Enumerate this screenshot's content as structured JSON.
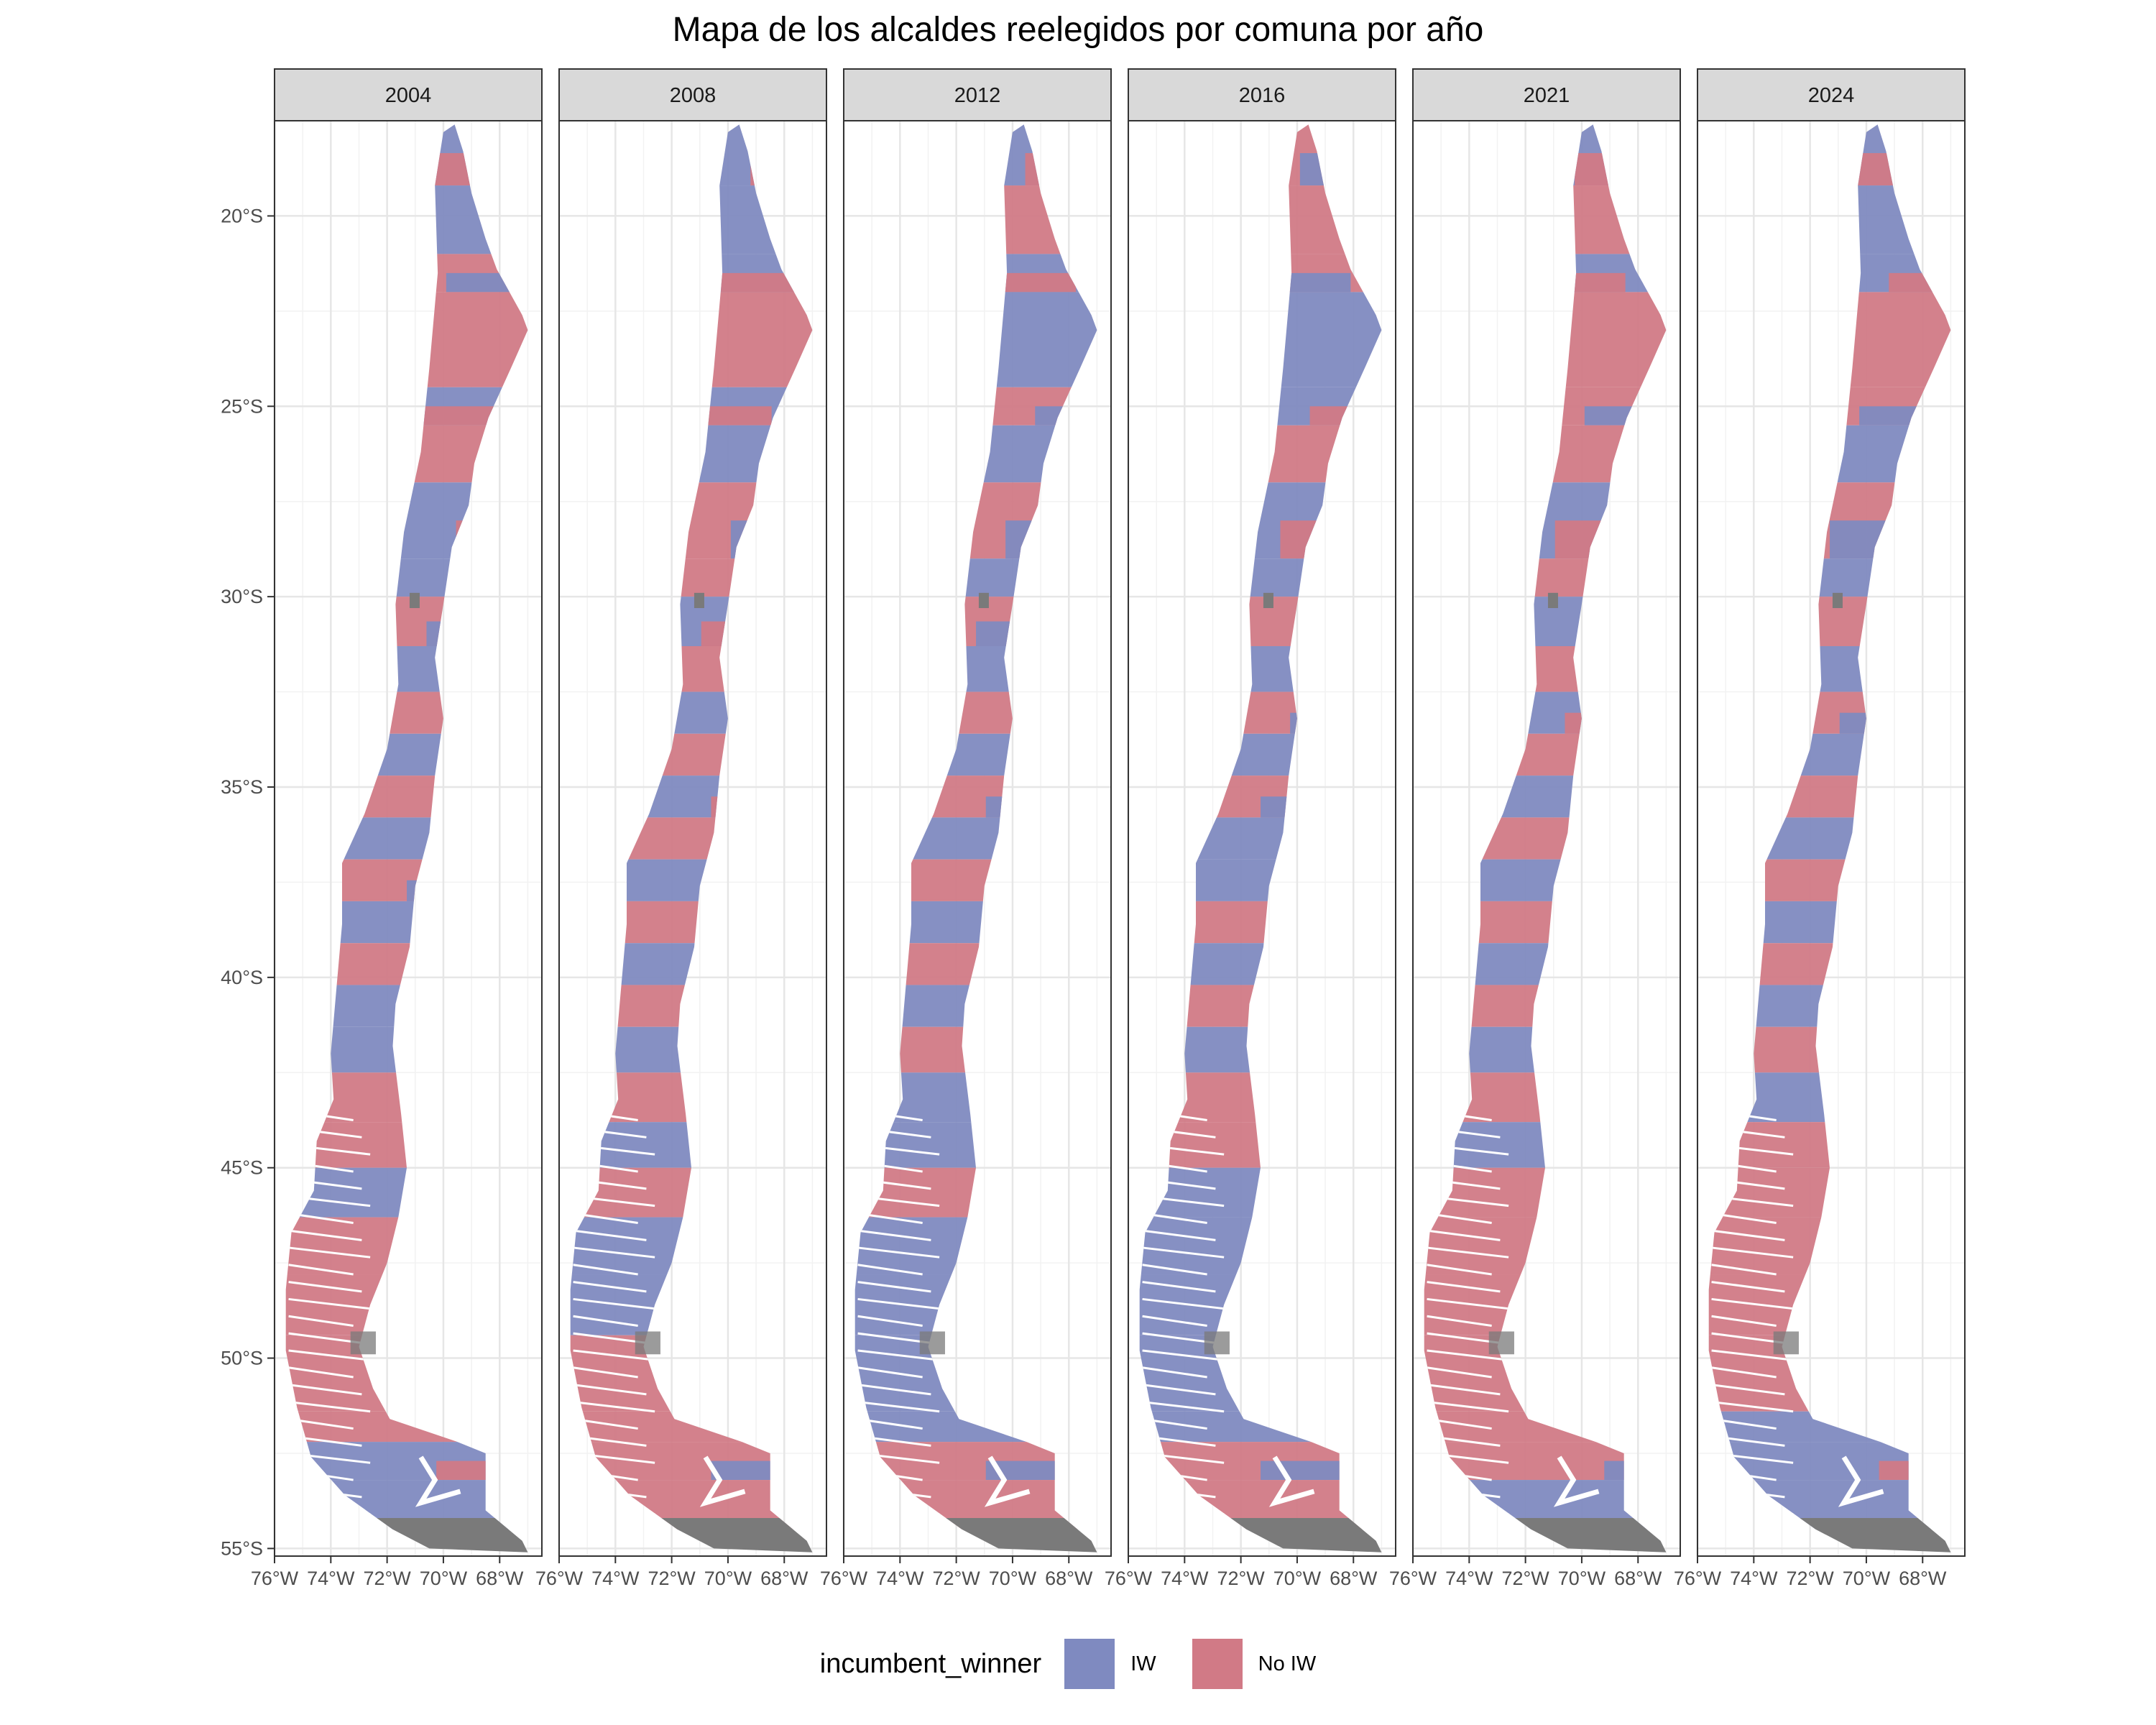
{
  "title": "Mapa de los alcaldes reelegidos por comuna por año",
  "chart_data": {
    "type": "choropleth-map",
    "facets": [
      "2004",
      "2008",
      "2012",
      "2016",
      "2021",
      "2024"
    ],
    "x_axis": {
      "range": [
        -76,
        -66.5
      ],
      "ticks": [
        -76,
        -74,
        -72,
        -70,
        -68
      ],
      "tick_labels": [
        "76°W",
        "74°W",
        "72°W",
        "70°W",
        "68°W"
      ]
    },
    "y_axis": {
      "range": [
        -55.2,
        -17.5
      ],
      "ticks": [
        -20,
        -25,
        -30,
        -35,
        -40,
        -45,
        -50,
        -55
      ],
      "tick_labels": [
        "20°S",
        "25°S",
        "30°S",
        "35°S",
        "40°S",
        "45°S",
        "50°S",
        "55°S"
      ]
    },
    "grid": true,
    "legend": {
      "title": "incumbent_winner",
      "position": "bottom",
      "entries": [
        {
          "label": "IW",
          "color": "#7f8ac0"
        },
        {
          "label": "No IW",
          "color": "#d17a86"
        }
      ]
    },
    "na_color": "#7a7a7a",
    "colors": {
      "IW": "#7f8ac0",
      "No IW": "#d17a86"
    },
    "regions": [
      {
        "lat": [
          -17.5,
          -19.2
        ],
        "vals": [
          "IW",
          "IW",
          "IW",
          "No IW",
          "IW",
          "IW"
        ]
      },
      {
        "lat": [
          -19.2,
          -21.0
        ],
        "vals": [
          "IW",
          "IW",
          "No IW",
          "No IW",
          "No IW",
          "IW"
        ]
      },
      {
        "lat": [
          -21.0,
          -22.0
        ],
        "vals": [
          "No IW",
          "IW",
          "IW",
          "No IW",
          "IW",
          "IW"
        ]
      },
      {
        "lat": [
          -22.0,
          -24.5
        ],
        "vals": [
          "No IW",
          "No IW",
          "IW",
          "IW",
          "No IW",
          "No IW"
        ]
      },
      {
        "lat": [
          -24.5,
          -25.5
        ],
        "vals": [
          "IW",
          "IW",
          "No IW",
          "IW",
          "No IW",
          "No IW"
        ]
      },
      {
        "lat": [
          -25.5,
          -27.0
        ],
        "vals": [
          "No IW",
          "IW",
          "IW",
          "No IW",
          "No IW",
          "IW"
        ]
      },
      {
        "lat": [
          -27.0,
          -29.0
        ],
        "vals": [
          "IW",
          "No IW",
          "No IW",
          "IW",
          "IW",
          "No IW"
        ]
      },
      {
        "lat": [
          -29.0,
          -30.0
        ],
        "vals": [
          "IW",
          "No IW",
          "IW",
          "IW",
          "No IW",
          "IW"
        ]
      },
      {
        "lat": [
          -30.0,
          -31.3
        ],
        "vals": [
          "No IW",
          "IW",
          "No IW",
          "No IW",
          "IW",
          "No IW"
        ]
      },
      {
        "lat": [
          -31.3,
          -32.5
        ],
        "vals": [
          "IW",
          "No IW",
          "IW",
          "IW",
          "No IW",
          "IW"
        ]
      },
      {
        "lat": [
          -32.5,
          -33.6
        ],
        "vals": [
          "No IW",
          "IW",
          "No IW",
          "No IW",
          "IW",
          "No IW"
        ]
      },
      {
        "lat": [
          -33.6,
          -34.7
        ],
        "vals": [
          "IW",
          "No IW",
          "IW",
          "IW",
          "No IW",
          "IW"
        ]
      },
      {
        "lat": [
          -34.7,
          -35.8
        ],
        "vals": [
          "No IW",
          "IW",
          "No IW",
          "No IW",
          "IW",
          "No IW"
        ]
      },
      {
        "lat": [
          -35.8,
          -36.9
        ],
        "vals": [
          "IW",
          "No IW",
          "IW",
          "IW",
          "No IW",
          "IW"
        ]
      },
      {
        "lat": [
          -36.9,
          -38.0
        ],
        "vals": [
          "No IW",
          "IW",
          "No IW",
          "IW",
          "IW",
          "No IW"
        ]
      },
      {
        "lat": [
          -38.0,
          -39.1
        ],
        "vals": [
          "IW",
          "No IW",
          "IW",
          "No IW",
          "No IW",
          "IW"
        ]
      },
      {
        "lat": [
          -39.1,
          -40.2
        ],
        "vals": [
          "No IW",
          "IW",
          "No IW",
          "IW",
          "IW",
          "No IW"
        ]
      },
      {
        "lat": [
          -40.2,
          -41.3
        ],
        "vals": [
          "IW",
          "No IW",
          "IW",
          "No IW",
          "No IW",
          "IW"
        ]
      },
      {
        "lat": [
          -41.3,
          -42.5
        ],
        "vals": [
          "IW",
          "IW",
          "No IW",
          "IW",
          "IW",
          "No IW"
        ]
      },
      {
        "lat": [
          -42.5,
          -43.8
        ],
        "vals": [
          "No IW",
          "No IW",
          "IW",
          "No IW",
          "No IW",
          "IW"
        ]
      },
      {
        "lat": [
          -43.8,
          -45.0
        ],
        "vals": [
          "No IW",
          "IW",
          "IW",
          "No IW",
          "IW",
          "No IW"
        ]
      },
      {
        "lat": [
          -45.0,
          -46.3
        ],
        "vals": [
          "IW",
          "No IW",
          "No IW",
          "IW",
          "No IW",
          "No IW"
        ]
      },
      {
        "lat": [
          -46.3,
          -47.8
        ],
        "vals": [
          "No IW",
          "IW",
          "IW",
          "IW",
          "No IW",
          "No IW"
        ]
      },
      {
        "lat": [
          -47.8,
          -49.4
        ],
        "vals": [
          "No IW",
          "IW",
          "IW",
          "IW",
          "No IW",
          "No IW"
        ]
      },
      {
        "lat": [
          -49.4,
          -51.4
        ],
        "vals": [
          "No IW",
          "No IW",
          "IW",
          "IW",
          "No IW",
          "No IW"
        ]
      },
      {
        "lat": [
          -51.4,
          -52.2
        ],
        "vals": [
          "No IW",
          "No IW",
          "IW",
          "IW",
          "No IW",
          "IW"
        ]
      },
      {
        "lat": [
          -52.2,
          -53.2
        ],
        "vals": [
          "IW",
          "No IW",
          "No IW",
          "No IW",
          "No IW",
          "IW"
        ]
      },
      {
        "lat": [
          -53.2,
          -54.5
        ],
        "vals": [
          "IW",
          "No IW",
          "No IW",
          "No IW",
          "IW",
          "IW"
        ]
      }
    ],
    "na_areas": [
      {
        "lat": [
          -29.9,
          -30.3
        ],
        "note_hidden": true
      },
      {
        "lat": [
          -49.3,
          -49.9
        ],
        "note_hidden": true
      },
      {
        "lat": [
          -54.2,
          -55.0
        ],
        "note_hidden": true
      }
    ]
  }
}
